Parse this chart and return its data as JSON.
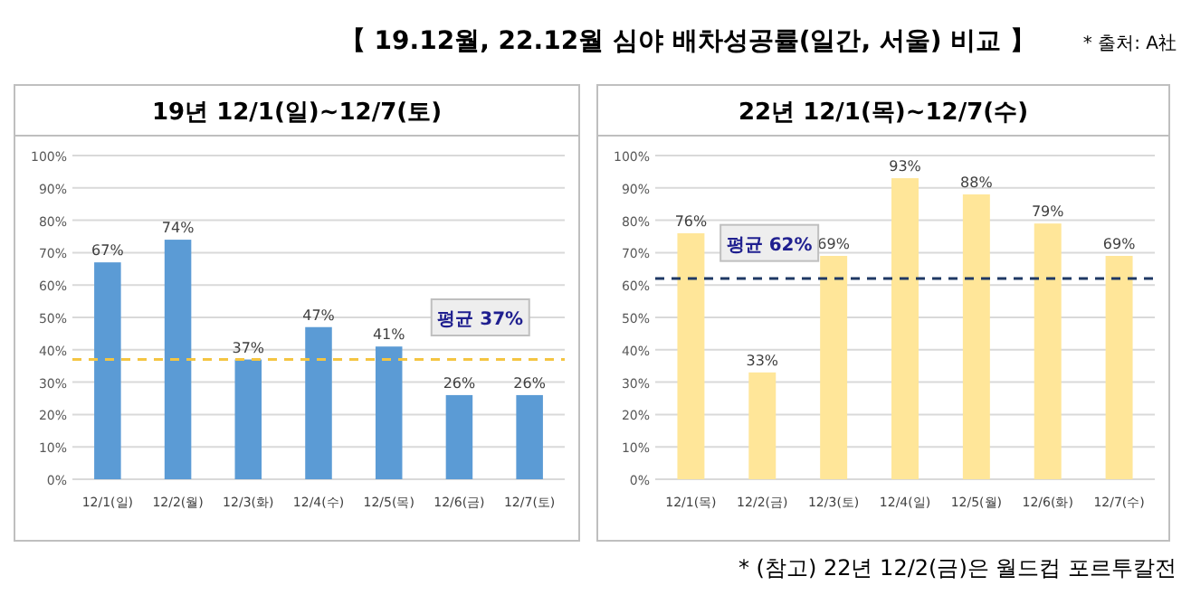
{
  "chart_data": [
    {
      "type": "bar",
      "title": "19년 12/1(일)~12/7(토)",
      "categories": [
        "12/1(일)",
        "12/2(월)",
        "12/3(화)",
        "12/4(수)",
        "12/5(목)",
        "12/6(금)",
        "12/7(토)"
      ],
      "values": [
        67,
        74,
        37,
        47,
        41,
        26,
        26
      ],
      "value_labels": [
        "67%",
        "74%",
        "37%",
        "47%",
        "41%",
        "26%",
        "26%"
      ],
      "color": "#5b9bd5",
      "ylim": [
        0,
        100
      ],
      "yticks": [
        {
          "value": 0,
          "label": "0%"
        },
        {
          "value": 10,
          "label": "10%"
        },
        {
          "value": 20,
          "label": "20%"
        },
        {
          "value": 30,
          "label": "30%"
        },
        {
          "value": 40,
          "label": "40%"
        },
        {
          "value": 50,
          "label": "50%"
        },
        {
          "value": 60,
          "label": "60%"
        },
        {
          "value": 70,
          "label": "70%"
        },
        {
          "value": 80,
          "label": "80%"
        },
        {
          "value": 90,
          "label": "90%"
        },
        {
          "value": 100,
          "label": "100%"
        }
      ],
      "grid": "y",
      "ref_lines": [
        {
          "axis": "y",
          "value": 37,
          "label": "평균 37%",
          "color": "#f4c542",
          "line_style": "dashed"
        }
      ],
      "annotations": [
        "【 19.12월, 22.12월 심야 배차성공률(일간, 서울) 비교 】",
        "* 출처: A社"
      ]
    },
    {
      "type": "bar",
      "title": "22년 12/1(목)~12/7(수)",
      "categories": [
        "12/1(목)",
        "12/2(금)",
        "12/3(토)",
        "12/4(일)",
        "12/5(월)",
        "12/6(화)",
        "12/7(수)"
      ],
      "values": [
        76,
        33,
        69,
        93,
        88,
        79,
        69
      ],
      "value_labels": [
        "76%",
        "33%",
        "69%",
        "93%",
        "88%",
        "79%",
        "69%"
      ],
      "color": "#ffe699",
      "ylim": [
        0,
        100
      ],
      "yticks": [
        {
          "value": 0,
          "label": "0%"
        },
        {
          "value": 10,
          "label": "10%"
        },
        {
          "value": 20,
          "label": "20%"
        },
        {
          "value": 30,
          "label": "30%"
        },
        {
          "value": 40,
          "label": "40%"
        },
        {
          "value": 50,
          "label": "50%"
        },
        {
          "value": 60,
          "label": "60%"
        },
        {
          "value": 70,
          "label": "70%"
        },
        {
          "value": 80,
          "label": "80%"
        },
        {
          "value": 90,
          "label": "90%"
        },
        {
          "value": 100,
          "label": "100%"
        }
      ],
      "grid": "y",
      "ref_lines": [
        {
          "axis": "y",
          "value": 62,
          "label": "평균 62%",
          "color": "#1f3864",
          "line_style": "dashed"
        }
      ],
      "annotations": [
        "* (참고) 22년 12/2(금)은 월드컵 포르투칼전"
      ]
    }
  ]
}
